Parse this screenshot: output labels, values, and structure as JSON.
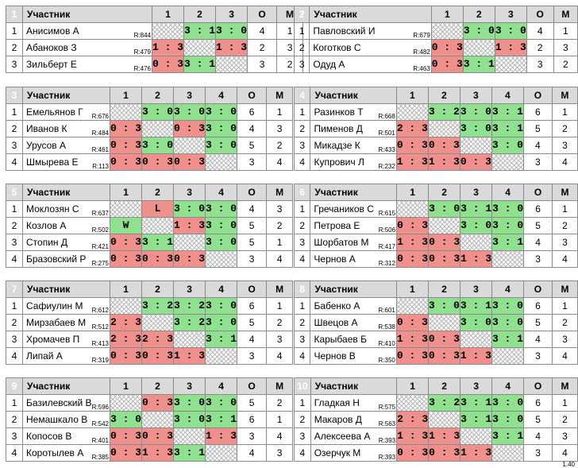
{
  "header_label": "Участник",
  "points_header": "О",
  "place_header": "М",
  "version": "1.40",
  "groups": [
    {
      "num": "1",
      "cols": [
        "1",
        "2",
        "3"
      ],
      "players": [
        {
          "no": "1",
          "name": "Анисимов А",
          "rating": "R:844",
          "results": [
            "",
            "3 : 1",
            "3 : 0"
          ],
          "points": "4",
          "place": "1"
        },
        {
          "no": "2",
          "name": "Абаноков З",
          "rating": "R:479",
          "results": [
            "1 : 3",
            "",
            "1 : 3"
          ],
          "points": "2",
          "place": "3"
        },
        {
          "no": "3",
          "name": "Зильберт Е",
          "rating": "R:476",
          "results": [
            "0 : 3",
            "3 : 1",
            ""
          ],
          "points": "3",
          "place": "2"
        }
      ]
    },
    {
      "num": "2",
      "cols": [
        "1",
        "2",
        "3"
      ],
      "players": [
        {
          "no": "1",
          "name": "Павловский И",
          "rating": "R:679",
          "results": [
            "",
            "3 : 0",
            "3 : 0"
          ],
          "points": "4",
          "place": "1"
        },
        {
          "no": "2",
          "name": "Коготков С",
          "rating": "R:482",
          "results": [
            "0 : 3",
            "",
            "1 : 3"
          ],
          "points": "2",
          "place": "3"
        },
        {
          "no": "3",
          "name": "Одуд А",
          "rating": "R:463",
          "results": [
            "0 : 3",
            "3 : 1",
            ""
          ],
          "points": "3",
          "place": "2"
        }
      ]
    },
    {
      "num": "3",
      "cols": [
        "1",
        "2",
        "3",
        "4"
      ],
      "players": [
        {
          "no": "1",
          "name": "Емельянов Г",
          "rating": "R:676",
          "results": [
            "",
            "3 : 0",
            "3 : 0",
            "3 : 0"
          ],
          "points": "6",
          "place": "1"
        },
        {
          "no": "2",
          "name": "Иванов К",
          "rating": "R:484",
          "results": [
            "0 : 3",
            "",
            "0 : 3",
            "3 : 0"
          ],
          "points": "4",
          "place": "3"
        },
        {
          "no": "3",
          "name": "Урусов А",
          "rating": "R:461",
          "results": [
            "0 : 3",
            "3 : 0",
            "",
            "3 : 0"
          ],
          "points": "5",
          "place": "2"
        },
        {
          "no": "4",
          "name": "Шмырева Е",
          "rating": "R:113",
          "results": [
            "0 : 3",
            "0 : 3",
            "0 : 3",
            ""
          ],
          "points": "3",
          "place": "4"
        }
      ]
    },
    {
      "num": "4",
      "cols": [
        "1",
        "2",
        "3",
        "4"
      ],
      "players": [
        {
          "no": "1",
          "name": "Разинков Т",
          "rating": "R:668",
          "results": [
            "",
            "3 : 2",
            "3 : 0",
            "3 : 1"
          ],
          "points": "6",
          "place": "1"
        },
        {
          "no": "2",
          "name": "Пименов Д",
          "rating": "R:501",
          "results": [
            "2 : 3",
            "",
            "3 : 0",
            "3 : 1"
          ],
          "points": "5",
          "place": "2"
        },
        {
          "no": "3",
          "name": "Микадзе К",
          "rating": "R:433",
          "results": [
            "0 : 3",
            "0 : 3",
            "",
            "3 : 0"
          ],
          "points": "4",
          "place": "3"
        },
        {
          "no": "4",
          "name": "Купрович Л",
          "rating": "R:232",
          "results": [
            "1 : 3",
            "1 : 3",
            "0 : 3",
            ""
          ],
          "points": "3",
          "place": "4"
        }
      ]
    },
    {
      "num": "5",
      "cols": [
        "1",
        "2",
        "3",
        "4"
      ],
      "players": [
        {
          "no": "1",
          "name": "Моклозян С",
          "rating": "R:637",
          "results": [
            "",
            "L",
            "3 : 0",
            "3 : 0"
          ],
          "points": "4",
          "place": "3"
        },
        {
          "no": "2",
          "name": "Козлов А",
          "rating": "R:502",
          "results": [
            "W",
            "",
            "1 : 3",
            "3 : 0"
          ],
          "points": "5",
          "place": "2"
        },
        {
          "no": "3",
          "name": "Стопин Д",
          "rating": "R:421",
          "results": [
            "0 : 3",
            "3 : 1",
            "",
            "3 : 0"
          ],
          "points": "5",
          "place": "1"
        },
        {
          "no": "4",
          "name": "Бразовский Р",
          "rating": "R:275",
          "results": [
            "0 : 3",
            "0 : 3",
            "0 : 3",
            ""
          ],
          "points": "3",
          "place": "4"
        }
      ]
    },
    {
      "num": "6",
      "cols": [
        "1",
        "2",
        "3",
        "4"
      ],
      "players": [
        {
          "no": "1",
          "name": "Гречаников С",
          "rating": "R:615",
          "results": [
            "",
            "3 : 0",
            "3 : 1",
            "3 : 0"
          ],
          "points": "6",
          "place": "1"
        },
        {
          "no": "2",
          "name": "Петрова Е",
          "rating": "R:506",
          "results": [
            "0 : 3",
            "",
            "3 : 0",
            "3 : 0"
          ],
          "points": "5",
          "place": "2"
        },
        {
          "no": "3",
          "name": "Шорбатов М",
          "rating": "R:417",
          "results": [
            "1 : 3",
            "0 : 3",
            "",
            "3 : 1"
          ],
          "points": "4",
          "place": "3"
        },
        {
          "no": "4",
          "name": "Чернов А",
          "rating": "R:312",
          "results": [
            "0 : 3",
            "0 : 3",
            "1 : 3",
            ""
          ],
          "points": "3",
          "place": "4"
        }
      ]
    },
    {
      "num": "7",
      "cols": [
        "1",
        "2",
        "3",
        "4"
      ],
      "players": [
        {
          "no": "1",
          "name": "Сафиулин М",
          "rating": "R:612",
          "results": [
            "",
            "3 : 2",
            "3 : 2",
            "3 : 0"
          ],
          "points": "6",
          "place": "1"
        },
        {
          "no": "2",
          "name": "Мирзабаев М",
          "rating": "R:512",
          "results": [
            "2 : 3",
            "",
            "3 : 2",
            "3 : 0"
          ],
          "points": "5",
          "place": "2"
        },
        {
          "no": "3",
          "name": "Хромачев П",
          "rating": "R:413",
          "results": [
            "2 : 3",
            "2 : 3",
            "",
            "3 : 1"
          ],
          "points": "4",
          "place": "3"
        },
        {
          "no": "4",
          "name": "Липай А",
          "rating": "R:319",
          "results": [
            "0 : 3",
            "0 : 3",
            "1 : 3",
            ""
          ],
          "points": "3",
          "place": "4"
        }
      ]
    },
    {
      "num": "8",
      "cols": [
        "1",
        "2",
        "3",
        "4"
      ],
      "players": [
        {
          "no": "1",
          "name": "Бабенко А",
          "rating": "R:601",
          "results": [
            "",
            "3 : 0",
            "3 : 1",
            "3 : 0"
          ],
          "points": "6",
          "place": "1"
        },
        {
          "no": "2",
          "name": "Швецов А",
          "rating": "R:538",
          "results": [
            "0 : 3",
            "",
            "3 : 0",
            "3 : 0"
          ],
          "points": "5",
          "place": "2"
        },
        {
          "no": "3",
          "name": "Карыбаев Б",
          "rating": "R:410",
          "results": [
            "1 : 3",
            "0 : 3",
            "",
            "3 : 1"
          ],
          "points": "4",
          "place": "3"
        },
        {
          "no": "4",
          "name": "Чернов В",
          "rating": "R:350",
          "results": [
            "0 : 3",
            "0 : 3",
            "1 : 3",
            ""
          ],
          "points": "3",
          "place": "4"
        }
      ]
    },
    {
      "num": "9",
      "cols": [
        "1",
        "2",
        "3",
        "4"
      ],
      "players": [
        {
          "no": "1",
          "name": "Базилевский В",
          "rating": "R:596",
          "results": [
            "",
            "0 : 3",
            "3 : 0",
            "3 : 0"
          ],
          "points": "5",
          "place": "2"
        },
        {
          "no": "2",
          "name": "Немашкало В",
          "rating": "R:542",
          "results": [
            "3 : 0",
            "",
            "3 : 0",
            "3 : 1"
          ],
          "points": "6",
          "place": "1"
        },
        {
          "no": "3",
          "name": "Копосов В",
          "rating": "R:401",
          "results": [
            "0 : 3",
            "0 : 3",
            "",
            "1 : 3"
          ],
          "points": "3",
          "place": "4"
        },
        {
          "no": "4",
          "name": "Коротылев А",
          "rating": "R:385",
          "results": [
            "0 : 3",
            "1 : 3",
            "3 : 1",
            ""
          ],
          "points": "4",
          "place": "3"
        }
      ]
    },
    {
      "num": "10",
      "cols": [
        "1",
        "2",
        "3",
        "4"
      ],
      "players": [
        {
          "no": "1",
          "name": "Гладкая Н",
          "rating": "R:575",
          "results": [
            "",
            "3 : 2",
            "3 : 1",
            "3 : 0"
          ],
          "points": "6",
          "place": "1"
        },
        {
          "no": "2",
          "name": "Макаров Д",
          "rating": "R:563",
          "results": [
            "2 : 3",
            "",
            "3 : 1",
            "3 : 0"
          ],
          "points": "5",
          "place": "2"
        },
        {
          "no": "3",
          "name": "Алексеева А",
          "rating": "R:393",
          "results": [
            "1 : 3",
            "1 : 3",
            "",
            "3 : 1"
          ],
          "points": "4",
          "place": "3"
        },
        {
          "no": "4",
          "name": "Озерчук М",
          "rating": "R:393",
          "results": [
            "0 : 3",
            "0 : 3",
            "1 : 3",
            ""
          ],
          "points": "3",
          "place": "4"
        }
      ]
    }
  ]
}
